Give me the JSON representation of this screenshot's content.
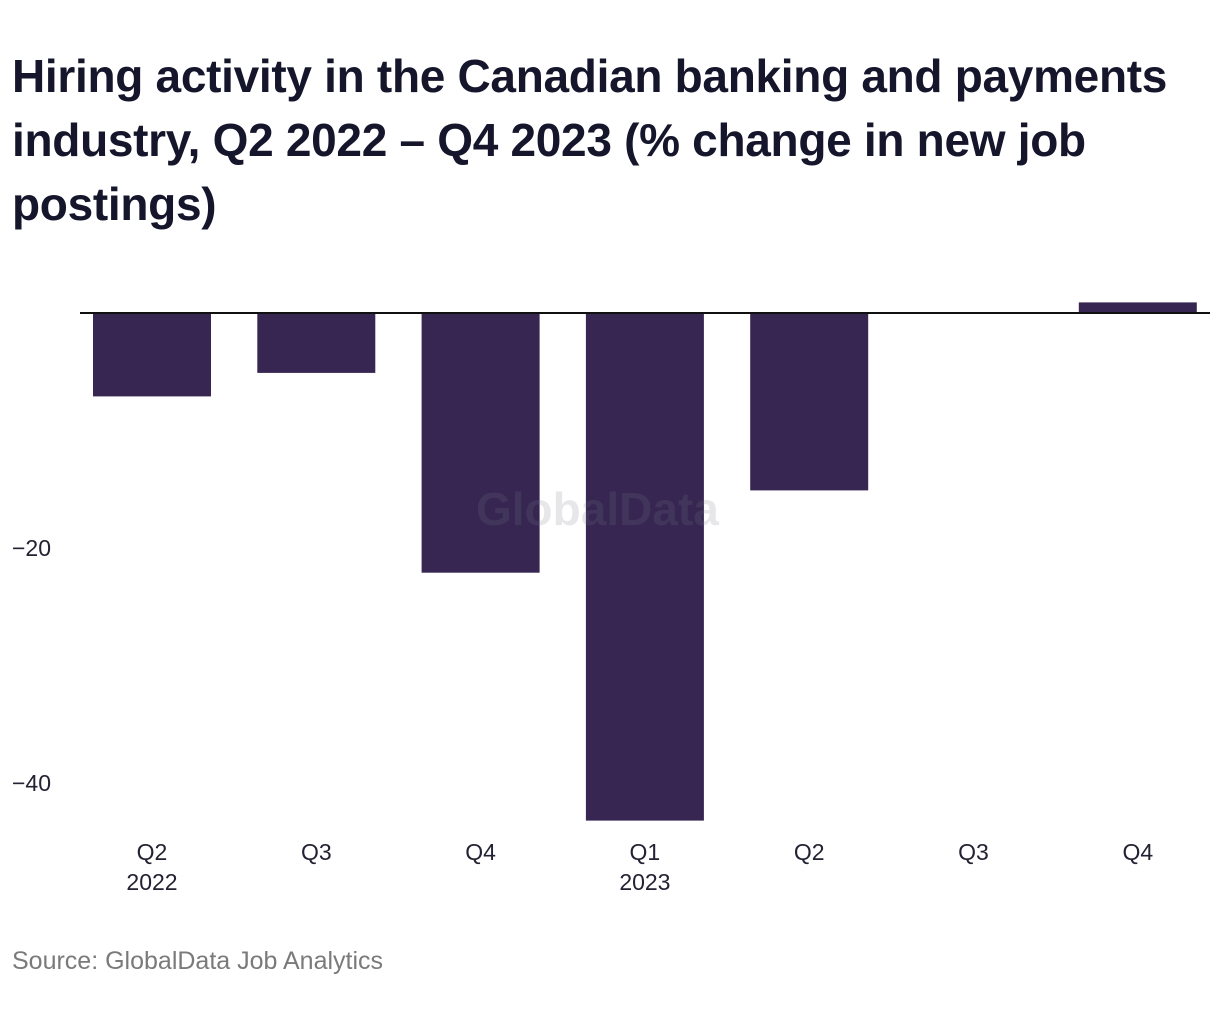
{
  "title": "Hiring activity in the Canadian banking and payments industry, Q2 2022 – Q4 2023 (% change in new job postings)",
  "source": "Source: GlobalData Job Analytics",
  "watermark": "GlobalData",
  "colors": {
    "bar": "#362651",
    "axis": "#111111",
    "title": "#15162b",
    "source": "#7a7a7a"
  },
  "chart_data": {
    "type": "bar",
    "title": "Hiring activity in the Canadian banking and payments industry, Q2 2022 – Q4 2023 (% change in new job postings)",
    "xlabel": "",
    "ylabel": "",
    "categories": [
      "Q2",
      "Q3",
      "Q4",
      "Q1",
      "Q2",
      "Q3",
      "Q4"
    ],
    "category_years": [
      "2022",
      "",
      "",
      "2023",
      "",
      "",
      ""
    ],
    "values": [
      -7.1,
      -5.1,
      -22.1,
      -43.2,
      -15.1,
      0.0,
      0.9
    ],
    "yticks": [
      {
        "value": -20,
        "label": "−20"
      },
      {
        "value": -40,
        "label": "−40"
      }
    ],
    "ylim": [
      -43.5,
      2
    ],
    "grid": false,
    "legend": "none"
  }
}
